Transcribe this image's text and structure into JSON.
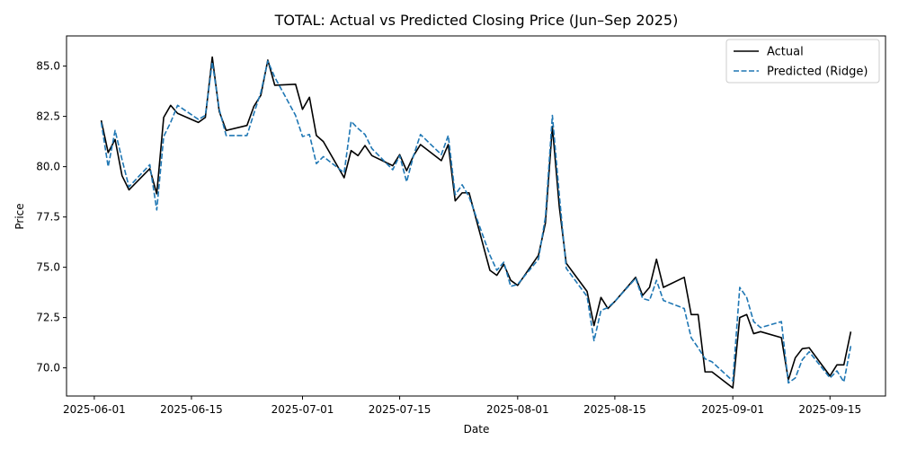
{
  "chart_data": {
    "type": "line",
    "title": "TOTAL: Actual vs Predicted Closing Price (Jun–Sep 2025)",
    "xlabel": "Date",
    "ylabel": "Price",
    "xlim": [
      "2025-05-28",
      "2025-09-23"
    ],
    "ylim": [
      68.6,
      86.5
    ],
    "x_ticks": [
      "2025-06-01",
      "2025-06-15",
      "2025-07-01",
      "2025-07-15",
      "2025-08-01",
      "2025-08-15",
      "2025-09-01",
      "2025-09-15"
    ],
    "y_ticks": [
      70.0,
      72.5,
      75.0,
      77.5,
      80.0,
      82.5,
      85.0
    ],
    "x_tick_labels": [
      "2025-06-01",
      "2025-06-15",
      "2025-07-01",
      "2025-07-15",
      "2025-08-01",
      "2025-08-15",
      "2025-09-01",
      "2025-09-15"
    ],
    "y_tick_labels": [
      "70.0",
      "72.5",
      "75.0",
      "77.5",
      "80.0",
      "82.5",
      "85.0"
    ],
    "legend_position": "top-right",
    "series": [
      {
        "name": "Actual",
        "color": "#000000",
        "style": "solid",
        "points": [
          [
            "2025-06-02",
            82.3
          ],
          [
            "2025-06-03",
            80.7
          ],
          [
            "2025-06-04",
            81.35
          ],
          [
            "2025-06-05",
            79.55
          ],
          [
            "2025-06-06",
            78.85
          ],
          [
            "2025-06-09",
            79.9
          ],
          [
            "2025-06-10",
            78.65
          ],
          [
            "2025-06-11",
            82.45
          ],
          [
            "2025-06-12",
            83.05
          ],
          [
            "2025-06-13",
            82.65
          ],
          [
            "2025-06-16",
            82.2
          ],
          [
            "2025-06-17",
            82.45
          ],
          [
            "2025-06-18",
            85.45
          ],
          [
            "2025-06-19",
            82.75
          ],
          [
            "2025-06-20",
            81.8
          ],
          [
            "2025-06-23",
            82.05
          ],
          [
            "2025-06-24",
            83.0
          ],
          [
            "2025-06-25",
            83.55
          ],
          [
            "2025-06-26",
            85.3
          ],
          [
            "2025-06-27",
            84.05
          ],
          [
            "2025-06-30",
            84.1
          ],
          [
            "2025-07-01",
            82.85
          ],
          [
            "2025-07-02",
            83.45
          ],
          [
            "2025-07-03",
            81.55
          ],
          [
            "2025-07-04",
            81.25
          ],
          [
            "2025-07-07",
            79.45
          ],
          [
            "2025-07-08",
            80.8
          ],
          [
            "2025-07-09",
            80.55
          ],
          [
            "2025-07-10",
            81.05
          ],
          [
            "2025-07-11",
            80.55
          ],
          [
            "2025-07-14",
            80.05
          ],
          [
            "2025-07-15",
            80.6
          ],
          [
            "2025-07-16",
            79.8
          ],
          [
            "2025-07-17",
            80.55
          ],
          [
            "2025-07-18",
            81.1
          ],
          [
            "2025-07-21",
            80.3
          ],
          [
            "2025-07-22",
            81.1
          ],
          [
            "2025-07-23",
            78.3
          ],
          [
            "2025-07-24",
            78.7
          ],
          [
            "2025-07-25",
            78.7
          ],
          [
            "2025-07-28",
            74.85
          ],
          [
            "2025-07-29",
            74.6
          ],
          [
            "2025-07-30",
            75.15
          ],
          [
            "2025-07-31",
            74.35
          ],
          [
            "2025-08-01",
            74.1
          ],
          [
            "2025-08-04",
            75.6
          ],
          [
            "2025-08-05",
            77.2
          ],
          [
            "2025-08-06",
            82.0
          ],
          [
            "2025-08-07",
            78.0
          ],
          [
            "2025-08-08",
            75.2
          ],
          [
            "2025-08-11",
            73.8
          ],
          [
            "2025-08-12",
            72.1
          ],
          [
            "2025-08-13",
            73.5
          ],
          [
            "2025-08-14",
            72.95
          ],
          [
            "2025-08-15",
            73.3
          ],
          [
            "2025-08-18",
            74.5
          ],
          [
            "2025-08-19",
            73.6
          ],
          [
            "2025-08-20",
            74.0
          ],
          [
            "2025-08-21",
            75.4
          ],
          [
            "2025-08-22",
            74.0
          ],
          [
            "2025-08-25",
            74.5
          ],
          [
            "2025-08-26",
            72.65
          ],
          [
            "2025-08-27",
            72.65
          ],
          [
            "2025-08-28",
            69.8
          ],
          [
            "2025-08-29",
            69.8
          ],
          [
            "2025-09-01",
            69.0
          ],
          [
            "2025-09-02",
            72.5
          ],
          [
            "2025-09-03",
            72.65
          ],
          [
            "2025-09-04",
            71.7
          ],
          [
            "2025-09-05",
            71.8
          ],
          [
            "2025-09-08",
            71.5
          ],
          [
            "2025-09-09",
            69.4
          ],
          [
            "2025-09-10",
            70.5
          ],
          [
            "2025-09-11",
            70.95
          ],
          [
            "2025-09-12",
            71.0
          ],
          [
            "2025-09-15",
            69.6
          ],
          [
            "2025-09-16",
            70.15
          ],
          [
            "2025-09-17",
            70.15
          ],
          [
            "2025-09-18",
            71.8
          ]
        ]
      },
      {
        "name": "Predicted (Ridge)",
        "color": "#1f77b4",
        "style": "dashed",
        "points": [
          [
            "2025-06-02",
            82.2
          ],
          [
            "2025-06-03",
            80.0
          ],
          [
            "2025-06-04",
            81.8
          ],
          [
            "2025-06-05",
            80.35
          ],
          [
            "2025-06-06",
            79.0
          ],
          [
            "2025-06-09",
            80.1
          ],
          [
            "2025-06-10",
            77.85
          ],
          [
            "2025-06-11",
            81.5
          ],
          [
            "2025-06-12",
            82.2
          ],
          [
            "2025-06-13",
            83.05
          ],
          [
            "2025-06-16",
            82.35
          ],
          [
            "2025-06-17",
            82.55
          ],
          [
            "2025-06-18",
            85.2
          ],
          [
            "2025-06-19",
            82.85
          ],
          [
            "2025-06-20",
            81.55
          ],
          [
            "2025-06-23",
            81.55
          ],
          [
            "2025-06-24",
            82.65
          ],
          [
            "2025-06-25",
            83.7
          ],
          [
            "2025-06-26",
            85.25
          ],
          [
            "2025-06-27",
            84.45
          ],
          [
            "2025-06-30",
            82.55
          ],
          [
            "2025-07-01",
            81.5
          ],
          [
            "2025-07-02",
            81.6
          ],
          [
            "2025-07-03",
            80.15
          ],
          [
            "2025-07-04",
            80.5
          ],
          [
            "2025-07-07",
            79.7
          ],
          [
            "2025-07-08",
            82.25
          ],
          [
            "2025-07-09",
            81.9
          ],
          [
            "2025-07-10",
            81.6
          ],
          [
            "2025-07-11",
            80.9
          ],
          [
            "2025-07-14",
            79.85
          ],
          [
            "2025-07-15",
            80.55
          ],
          [
            "2025-07-16",
            79.25
          ],
          [
            "2025-07-17",
            80.55
          ],
          [
            "2025-07-18",
            81.6
          ],
          [
            "2025-07-21",
            80.6
          ],
          [
            "2025-07-22",
            81.55
          ],
          [
            "2025-07-23",
            78.6
          ],
          [
            "2025-07-24",
            79.1
          ],
          [
            "2025-07-25",
            78.5
          ],
          [
            "2025-07-28",
            75.6
          ],
          [
            "2025-07-29",
            74.85
          ],
          [
            "2025-07-30",
            75.25
          ],
          [
            "2025-07-31",
            74.05
          ],
          [
            "2025-08-01",
            74.15
          ],
          [
            "2025-08-04",
            75.4
          ],
          [
            "2025-08-05",
            77.5
          ],
          [
            "2025-08-06",
            82.55
          ],
          [
            "2025-08-07",
            78.6
          ],
          [
            "2025-08-08",
            74.95
          ],
          [
            "2025-08-11",
            73.55
          ],
          [
            "2025-08-12",
            71.35
          ],
          [
            "2025-08-13",
            72.85
          ],
          [
            "2025-08-14",
            73.0
          ],
          [
            "2025-08-15",
            73.3
          ],
          [
            "2025-08-18",
            74.45
          ],
          [
            "2025-08-19",
            73.45
          ],
          [
            "2025-08-20",
            73.35
          ],
          [
            "2025-08-21",
            74.35
          ],
          [
            "2025-08-22",
            73.35
          ],
          [
            "2025-08-25",
            72.95
          ],
          [
            "2025-08-26",
            71.5
          ],
          [
            "2025-08-27",
            71.0
          ],
          [
            "2025-08-28",
            70.45
          ],
          [
            "2025-08-29",
            70.3
          ],
          [
            "2025-09-01",
            69.35
          ],
          [
            "2025-09-02",
            74.0
          ],
          [
            "2025-09-03",
            73.5
          ],
          [
            "2025-09-04",
            72.3
          ],
          [
            "2025-09-05",
            72.0
          ],
          [
            "2025-09-08",
            72.3
          ],
          [
            "2025-09-09",
            69.25
          ],
          [
            "2025-09-10",
            69.5
          ],
          [
            "2025-09-11",
            70.4
          ],
          [
            "2025-09-12",
            70.8
          ],
          [
            "2025-09-15",
            69.5
          ],
          [
            "2025-09-16",
            69.85
          ],
          [
            "2025-09-17",
            69.3
          ],
          [
            "2025-09-18",
            71.1
          ]
        ]
      }
    ]
  }
}
